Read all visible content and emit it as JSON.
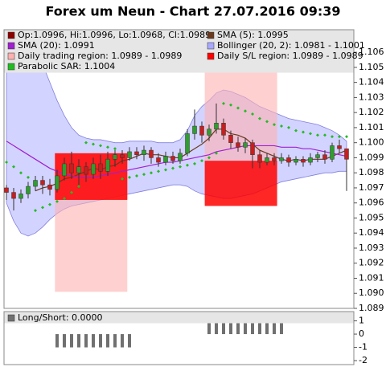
{
  "chart_data": [
    {
      "type": "candlestick",
      "title": "Forex um Neun - Chart 27.07.2016 09:39",
      "ylim": [
        1.089,
        1.1075
      ],
      "yticks": [
        1.089,
        {
          "value": 1.09,
          "label": "1.090"
        },
        1.091,
        1.092,
        1.093,
        1.094,
        1.095,
        1.096,
        1.097,
        1.098,
        1.099,
        {
          "value": 1.1,
          "label": "1.100"
        },
        1.101,
        1.102,
        1.103,
        1.104,
        1.105,
        1.106
      ],
      "candles": {
        "name": "Op:1.0996, Hi:1.0996, Lo:1.0968, Cl:1.0989",
        "color": "#8b0000",
        "up_color": "#2e9e2e",
        "down_color": "#c81e1e",
        "open": [
          1.097,
          1.0967,
          1.0963,
          1.0966,
          1.0971,
          1.0975,
          1.0972,
          1.0969,
          1.0978,
          1.0986,
          1.098,
          1.0984,
          1.0979,
          1.0986,
          1.0981,
          1.0989,
          1.0992,
          1.099,
          1.0994,
          1.0992,
          1.0995,
          1.099,
          1.0987,
          1.0991,
          1.0988,
          1.0993,
          1.1006,
          1.1011,
          1.1005,
          1.1009,
          1.1013,
          1.1005,
          1.1,
          1.0997,
          1.1,
          1.0992,
          1.0987,
          1.099,
          1.0988,
          1.099,
          1.0987,
          1.0989,
          1.0987,
          1.099,
          1.0992,
          1.0989,
          1.0998,
          1.0996
        ],
        "high": [
          1.0972,
          1.097,
          1.0969,
          1.0974,
          1.0978,
          1.0978,
          1.0976,
          1.0982,
          1.099,
          1.0994,
          1.0989,
          1.0987,
          1.099,
          1.0992,
          1.0994,
          1.0996,
          1.0995,
          1.0997,
          1.0997,
          1.0998,
          1.0997,
          1.0993,
          1.0994,
          1.0994,
          1.0996,
          1.1009,
          1.1022,
          1.1014,
          1.1012,
          1.1026,
          1.1016,
          1.1008,
          1.1004,
          1.1003,
          1.1002,
          1.0995,
          1.0993,
          1.0993,
          1.0993,
          1.0992,
          1.0991,
          1.0991,
          1.0993,
          1.0994,
          1.0995,
          1.1,
          1.1002,
          1.0996
        ],
        "low": [
          1.0962,
          1.0955,
          1.096,
          1.0963,
          1.0968,
          1.0966,
          1.0965,
          1.0967,
          1.0975,
          1.0976,
          1.0972,
          1.0974,
          1.0976,
          1.0976,
          1.0978,
          1.0984,
          1.0986,
          1.0988,
          1.0989,
          1.0988,
          1.0986,
          1.0984,
          1.0985,
          1.0986,
          1.0986,
          1.0991,
          1.1002,
          1.1,
          1.1001,
          1.1006,
          1.1002,
          1.0996,
          1.0994,
          1.0993,
          1.0983,
          1.0983,
          1.0985,
          1.0985,
          1.0986,
          1.0984,
          1.0985,
          1.0984,
          1.0985,
          1.0987,
          1.0986,
          1.0987,
          1.0993,
          1.0968
        ],
        "close": [
          1.0967,
          1.0963,
          1.0966,
          1.0971,
          1.0975,
          1.0972,
          1.0969,
          1.0978,
          1.0986,
          1.098,
          1.0984,
          1.0979,
          1.0986,
          1.0981,
          1.0989,
          1.0992,
          1.099,
          1.0994,
          1.0992,
          1.0995,
          1.099,
          1.0987,
          1.0991,
          1.0988,
          1.0993,
          1.1006,
          1.1011,
          1.1005,
          1.1009,
          1.1013,
          1.1005,
          1.1,
          1.0997,
          1.1,
          1.0992,
          1.0987,
          1.099,
          1.0988,
          1.099,
          1.0987,
          1.0989,
          1.0987,
          1.099,
          1.0992,
          1.0989,
          1.0998,
          1.0996,
          1.0989
        ]
      },
      "lines": [
        {
          "name": "SMA (5): 1.0995",
          "color": "#6b3a1e",
          "values": [
            null,
            null,
            null,
            null,
            1.0968,
            1.097,
            1.0971,
            1.0973,
            1.0976,
            1.0977,
            1.0979,
            1.0981,
            1.0983,
            1.0982,
            1.0984,
            1.0985,
            1.0988,
            1.0989,
            1.0991,
            1.0993,
            1.0992,
            1.0992,
            1.0991,
            1.099,
            1.099,
            1.0993,
            1.0996,
            1.0999,
            1.1003,
            1.1009,
            1.1009,
            1.1006,
            1.1005,
            1.1003,
            1.0999,
            1.0995,
            1.0993,
            1.0991,
            1.0989,
            1.0988,
            1.0989,
            1.0988,
            1.0989,
            1.0989,
            1.0989,
            1.0991,
            1.0993,
            1.0995
          ]
        },
        {
          "name": "SMA (20): 1.0991",
          "color": "#a020d0",
          "values": [
            1.1001,
            1.0998,
            1.0995,
            1.0992,
            1.0989,
            1.0986,
            1.0983,
            1.0981,
            1.0979,
            1.0978,
            1.0977,
            1.0977,
            1.0977,
            1.0978,
            1.0979,
            1.098,
            1.0981,
            1.0982,
            1.0983,
            1.0984,
            1.0985,
            1.0986,
            1.0987,
            1.0987,
            1.0988,
            1.0989,
            1.099,
            1.0991,
            1.0992,
            1.0994,
            1.0995,
            1.0996,
            1.0997,
            1.0998,
            1.0998,
            1.0998,
            1.0998,
            1.0998,
            1.0997,
            1.0997,
            1.0997,
            1.0996,
            1.0996,
            1.0995,
            1.0994,
            1.0993,
            1.0992,
            1.0991
          ]
        }
      ],
      "band": {
        "name": "Bollinger (20, 2): 1.0981 - 1.1001",
        "color": "#a8a8ff",
        "upper": [
          1.106,
          1.1068,
          1.107,
          1.1068,
          1.1062,
          1.1052,
          1.104,
          1.1028,
          1.1018,
          1.101,
          1.1005,
          1.1003,
          1.1002,
          1.1002,
          1.1001,
          1.1,
          1.1,
          1.1001,
          1.1001,
          1.1001,
          1.1001,
          1.1,
          1.1,
          1.1,
          1.1002,
          1.1008,
          1.1018,
          1.1024,
          1.1028,
          1.1033,
          1.1035,
          1.1034,
          1.1032,
          1.103,
          1.1027,
          1.1024,
          1.1022,
          1.102,
          1.1018,
          1.1016,
          1.1015,
          1.1014,
          1.1013,
          1.1012,
          1.101,
          1.1008,
          1.1005,
          1.1001
        ],
        "lower": [
          1.096,
          1.0948,
          1.094,
          1.0938,
          1.094,
          1.0944,
          1.0949,
          1.0953,
          1.0956,
          1.0958,
          1.0959,
          1.096,
          1.0961,
          1.0962,
          1.0963,
          1.0964,
          1.0965,
          1.0966,
          1.0967,
          1.0968,
          1.0969,
          1.097,
          1.0971,
          1.0972,
          1.0972,
          1.0971,
          1.0968,
          1.0966,
          1.0965,
          1.0964,
          1.0963,
          1.0963,
          1.0964,
          1.0965,
          1.0966,
          1.0968,
          1.097,
          1.0972,
          1.0974,
          1.0975,
          1.0976,
          1.0977,
          1.0978,
          1.0979,
          1.098,
          1.098,
          1.0981,
          1.0981
        ]
      },
      "regions": [
        {
          "name": "Daily trading region: 1.0989 - 1.0989",
          "color": "#ffb0b0",
          "items": [
            {
              "start": 6.7,
              "end": 16.7,
              "low": 1.0901,
              "high": 1.0993
            },
            {
              "start": 27.4,
              "end": 37.4,
              "low": 1.0988,
              "high": 1.1049
            }
          ]
        },
        {
          "name": "Daily S/L region: 1.0989 - 1.0989",
          "color": "#ff0000",
          "items": [
            {
              "start": 6.7,
              "end": 16.7,
              "low": 1.0962,
              "high": 1.0993
            },
            {
              "start": 27.4,
              "end": 37.4,
              "low": 1.0958,
              "high": 1.0988
            }
          ]
        }
      ],
      "sar": {
        "name": "Parabolic SAR: 1.1004",
        "color": "#22bb22",
        "values": [
          1.0987,
          1.0984,
          1.098,
          1.0977,
          1.0955,
          1.0957,
          1.0959,
          1.0961,
          1.0963,
          1.0967,
          1.0971,
          1.1,
          1.0999,
          1.0998,
          1.0997,
          1.0996,
          1.0976,
          1.0977,
          1.0978,
          1.0979,
          1.098,
          1.0981,
          1.0982,
          1.0983,
          1.0984,
          1.0985,
          1.0986,
          1.0988,
          1.099,
          1.0993,
          1.1026,
          1.1025,
          1.1023,
          1.1021,
          1.1019,
          1.1016,
          1.1014,
          1.1012,
          1.1011,
          1.101,
          1.1008,
          1.1007,
          1.1006,
          1.1005,
          1.1005,
          1.1004,
          1.1004,
          1.1004
        ]
      }
    },
    {
      "type": "bar",
      "legend": "Long/Short: 0.0000",
      "color": "#707070",
      "ylim": [
        -2.3,
        1.7
      ],
      "yticks": [
        1,
        0,
        -1,
        -2
      ],
      "values": [
        0,
        0,
        0,
        0,
        0,
        0,
        0,
        -1,
        -1,
        -1,
        -1,
        -1,
        -1,
        -1,
        -1,
        -1,
        -1,
        -1,
        0,
        0,
        0,
        0,
        0,
        0,
        0,
        0,
        0,
        0,
        1,
        1,
        1,
        1,
        1,
        1,
        1,
        1,
        1,
        1,
        1,
        0,
        0,
        0,
        0,
        0,
        0,
        0,
        0,
        0
      ]
    }
  ]
}
